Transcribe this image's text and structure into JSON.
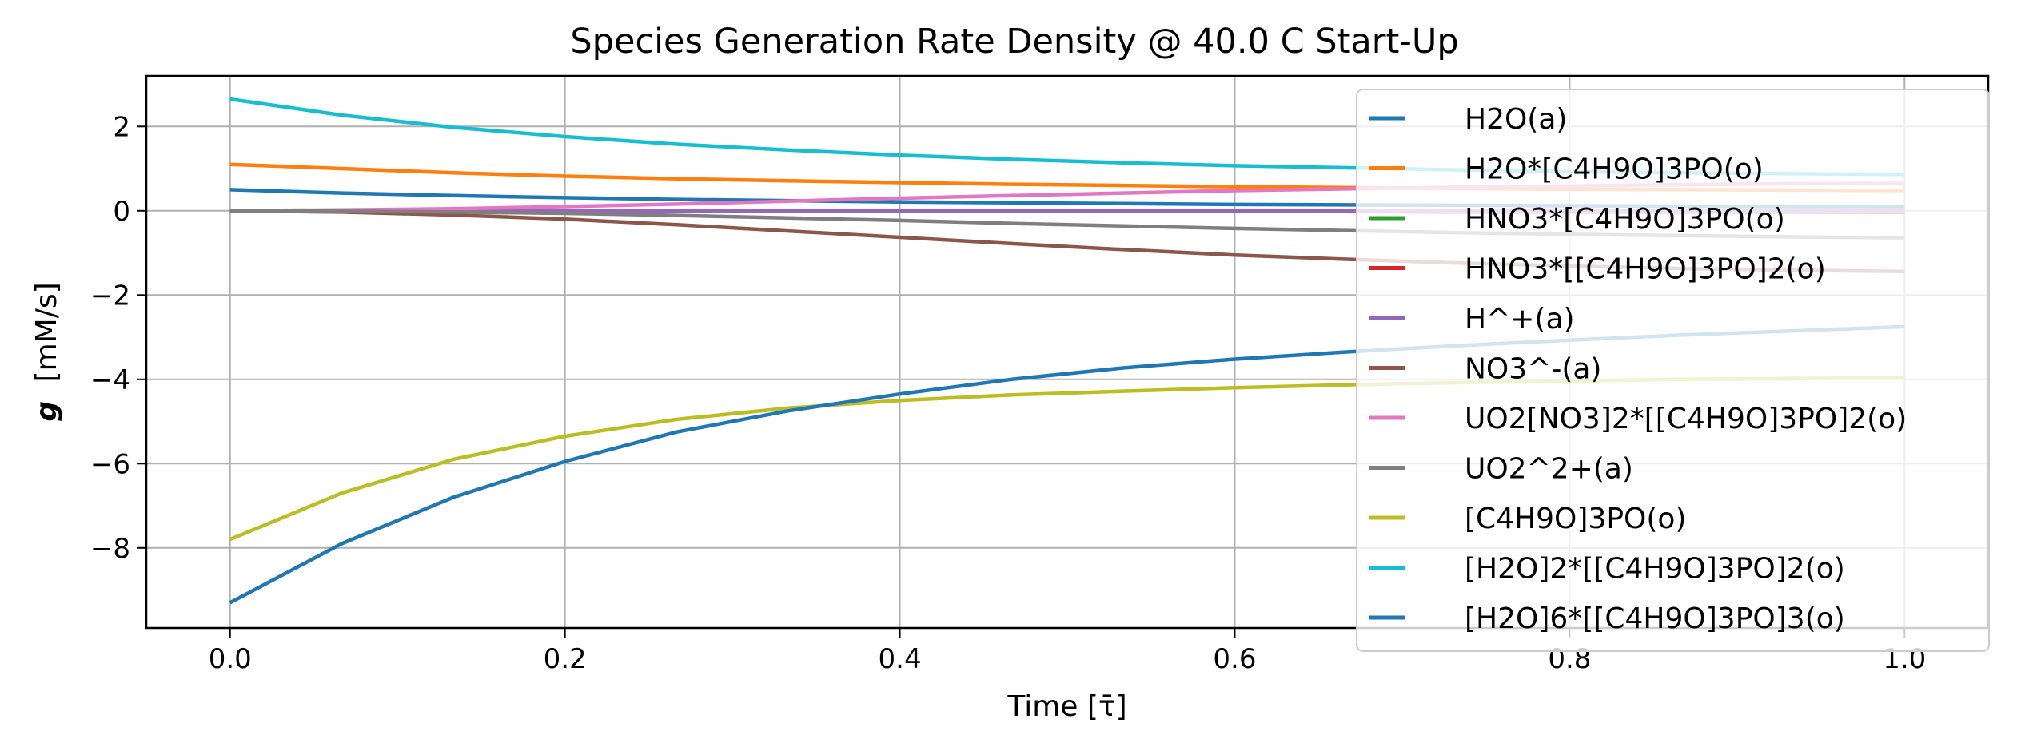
{
  "chart_data": {
    "type": "line",
    "title": "Species Generation Rate Density @ 40.0 C Start-Up",
    "xlabel": "Time [τ̄]",
    "ylabel_symbol": "g",
    "ylabel_unit": "[mM/s]",
    "xlim": [
      -0.05,
      1.05
    ],
    "ylim": [
      -9.9,
      3.2
    ],
    "xticks": [
      0.0,
      0.2,
      0.4,
      0.6,
      0.8,
      1.0
    ],
    "xtick_labels": [
      "0.0",
      "0.2",
      "0.4",
      "0.6",
      "0.8",
      "1.0"
    ],
    "yticks": [
      2,
      0,
      -2,
      -4,
      -6,
      -8
    ],
    "ytick_labels": [
      "2",
      "0",
      "−2",
      "−4",
      "−6",
      "−8"
    ],
    "grid": true,
    "legend_position": "upper-right",
    "x": [
      0.0,
      0.0667,
      0.1333,
      0.2,
      0.2667,
      0.3333,
      0.4,
      0.4667,
      0.5333,
      0.6,
      0.6667,
      0.7333,
      0.8,
      0.8667,
      0.9333,
      1.0
    ],
    "series": [
      {
        "name": "H2O(a)",
        "color": "#1f77b4",
        "values": [
          0.5,
          0.42,
          0.36,
          0.31,
          0.27,
          0.24,
          0.21,
          0.19,
          0.17,
          0.15,
          0.14,
          0.13,
          0.12,
          0.11,
          0.1,
          0.1
        ]
      },
      {
        "name": "H2O*[C4H9O]3PO(o)",
        "color": "#ff7f0e",
        "values": [
          1.1,
          1.0,
          0.9,
          0.82,
          0.76,
          0.71,
          0.67,
          0.63,
          0.6,
          0.57,
          0.55,
          0.53,
          0.51,
          0.5,
          0.49,
          0.48
        ]
      },
      {
        "name": "HNO3*[C4H9O]3PO(o)",
        "color": "#2ca02c",
        "values": [
          0.0,
          0.0,
          0.0,
          0.0,
          0.0,
          0.0,
          0.0,
          0.0,
          0.0,
          0.0,
          0.0,
          0.0,
          0.0,
          0.0,
          0.0,
          0.0
        ]
      },
      {
        "name": "HNO3*[[C4H9O]3PO]2(o)",
        "color": "#d62728",
        "values": [
          0.0,
          0.0,
          0.0,
          0.0,
          0.0,
          -0.01,
          -0.01,
          -0.01,
          -0.02,
          -0.02,
          -0.02,
          -0.03,
          -0.03,
          -0.03,
          -0.03,
          -0.04
        ]
      },
      {
        "name": "H^+(a)",
        "color": "#9467bd",
        "values": [
          0.0,
          0.0,
          0.0,
          0.0,
          0.0,
          0.0,
          0.0,
          0.0,
          0.0,
          0.0,
          0.0,
          0.0,
          0.0,
          0.0,
          0.0,
          0.0
        ]
      },
      {
        "name": "NO3^-(a)",
        "color": "#8c564b",
        "values": [
          0.0,
          -0.03,
          -0.1,
          -0.2,
          -0.33,
          -0.48,
          -0.63,
          -0.78,
          -0.92,
          -1.05,
          -1.15,
          -1.24,
          -1.31,
          -1.37,
          -1.41,
          -1.44
        ]
      },
      {
        "name": "UO2[NO3]2*[[C4H9O]3PO]2(o)",
        "color": "#e377c2",
        "values": [
          0.0,
          0.02,
          0.05,
          0.1,
          0.16,
          0.23,
          0.3,
          0.36,
          0.42,
          0.48,
          0.52,
          0.56,
          0.59,
          0.62,
          0.64,
          0.65
        ]
      },
      {
        "name": "UO2^2+(a)",
        "color": "#7f7f7f",
        "values": [
          0.0,
          -0.01,
          -0.03,
          -0.06,
          -0.11,
          -0.17,
          -0.23,
          -0.3,
          -0.36,
          -0.42,
          -0.47,
          -0.52,
          -0.56,
          -0.59,
          -0.62,
          -0.64
        ]
      },
      {
        "name": "[C4H9O]3PO(o)",
        "color": "#bcbd22",
        "values": [
          -7.8,
          -6.7,
          -5.9,
          -5.35,
          -4.95,
          -4.68,
          -4.5,
          -4.37,
          -4.28,
          -4.2,
          -4.13,
          -4.08,
          -4.04,
          -4.0,
          -3.98,
          -3.96
        ]
      },
      {
        "name": "[H2O]2*[[C4H9O]3PO]2(o)",
        "color": "#17becf",
        "values": [
          2.65,
          2.27,
          1.98,
          1.76,
          1.58,
          1.44,
          1.32,
          1.22,
          1.14,
          1.07,
          1.02,
          0.97,
          0.93,
          0.9,
          0.88,
          0.86
        ]
      },
      {
        "name": "[H2O]6*[[C4H9O]3PO]3(o)",
        "color": "#1f77b4",
        "values": [
          -9.3,
          -7.9,
          -6.8,
          -5.95,
          -5.25,
          -4.75,
          -4.35,
          -4.0,
          -3.73,
          -3.52,
          -3.35,
          -3.2,
          -3.07,
          -2.95,
          -2.85,
          -2.75
        ]
      }
    ]
  }
}
